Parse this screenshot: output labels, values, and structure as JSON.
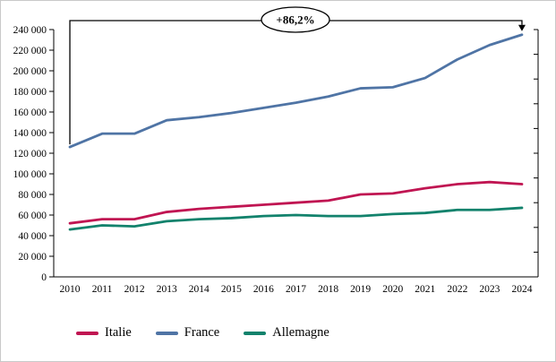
{
  "chart_data": {
    "type": "line",
    "title": "",
    "categories": [
      "2010",
      "2011",
      "2012",
      "2013",
      "2014",
      "2015",
      "2016",
      "2017",
      "2018",
      "2019",
      "2020",
      "2021",
      "2022",
      "2023",
      "2024"
    ],
    "series": [
      {
        "name": "Italie",
        "color": "#c01552",
        "values": [
          52000,
          56000,
          56000,
          63000,
          66000,
          68000,
          70000,
          72000,
          74000,
          80000,
          81000,
          86000,
          90000,
          92000,
          90000
        ]
      },
      {
        "name": "France",
        "color": "#4f74a5",
        "values": [
          126000,
          139000,
          139000,
          152000,
          155000,
          159000,
          164000,
          169000,
          175000,
          183000,
          184000,
          193000,
          211000,
          225000,
          235000
        ]
      },
      {
        "name": "Allemagne",
        "color": "#12826c",
        "values": [
          46000,
          50000,
          49000,
          54000,
          56000,
          57000,
          59000,
          60000,
          59000,
          59000,
          61000,
          62000,
          65000,
          65000,
          67000
        ]
      }
    ],
    "ylim": [
      0,
      240000
    ],
    "ytick_step": 20000,
    "right_axis": {
      "visible": true,
      "intervals": 10,
      "labels": false
    },
    "grid": false,
    "legend_position": "bottom",
    "annotation": {
      "label": "+86,2%",
      "from_series": "France",
      "from_category": "2010",
      "to_category": "2024"
    }
  }
}
